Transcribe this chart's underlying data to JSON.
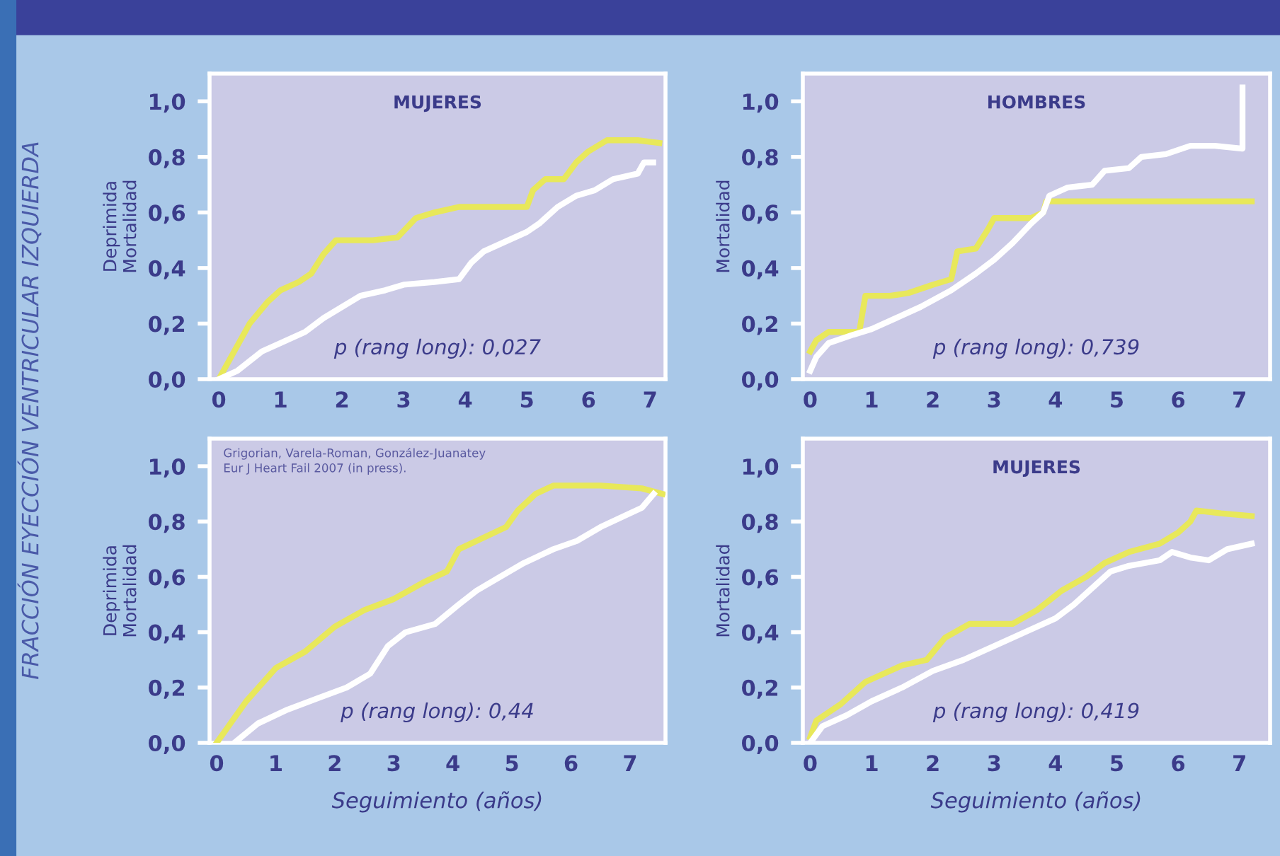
{
  "chart_data": [
    {
      "type": "line",
      "title": "MUJERES",
      "ylabel": "Deprimida\nMortalidad",
      "annotations": [
        "p (rang long): 0,027",
        "FRACCIÓN EYECCIÓN VENTRICULAR IZQUIERDA"
      ],
      "xlim": [
        -0.15,
        7.25
      ],
      "xticks": [
        0,
        1,
        2,
        3,
        4,
        5,
        6,
        7
      ],
      "ylim": [
        0,
        1.1
      ],
      "yticks": [
        {
          "value": 0,
          "label": "0,0"
        },
        {
          "value": 0.2,
          "label": "0,2"
        },
        {
          "value": 0.4,
          "label": "0,4"
        },
        {
          "value": 0.6,
          "label": "0,6"
        },
        {
          "value": 0.8,
          "label": "0,8"
        },
        {
          "value": 1.0,
          "label": "1,0"
        }
      ],
      "series": [
        {
          "color": "#e8e85a",
          "x": [
            0,
            0.2,
            0.5,
            0.8,
            1.0,
            1.3,
            1.5,
            1.7,
            1.9,
            2.5,
            2.9,
            3.2,
            3.5,
            3.9,
            4.5,
            5.0,
            5.1,
            5.3,
            5.6,
            5.8,
            6.0,
            6.3,
            6.8,
            7.15
          ],
          "values": [
            0,
            0.08,
            0.2,
            0.28,
            0.32,
            0.35,
            0.38,
            0.45,
            0.5,
            0.5,
            0.51,
            0.58,
            0.6,
            0.62,
            0.62,
            0.62,
            0.68,
            0.72,
            0.72,
            0.78,
            0.82,
            0.86,
            0.86,
            0.85
          ]
        },
        {
          "color": "#ffffff",
          "x": [
            0,
            0.3,
            0.7,
            1.0,
            1.4,
            1.7,
            2.0,
            2.3,
            2.7,
            3.0,
            3.5,
            3.9,
            4.1,
            4.3,
            4.7,
            5.0,
            5.2,
            5.5,
            5.8,
            6.1,
            6.4,
            6.8,
            6.9,
            7.05
          ],
          "values": [
            0,
            0.03,
            0.1,
            0.13,
            0.17,
            0.22,
            0.26,
            0.3,
            0.32,
            0.34,
            0.35,
            0.36,
            0.42,
            0.46,
            0.5,
            0.53,
            0.56,
            0.62,
            0.66,
            0.68,
            0.72,
            0.74,
            0.78,
            0.78
          ]
        }
      ]
    },
    {
      "type": "line",
      "title": "HOMBRES",
      "ylabel": "Mortalidad",
      "annotations": [
        "p (rang long): 0,739"
      ],
      "xlim": [
        -0.12,
        7.5
      ],
      "xticks": [
        0,
        1,
        2,
        3,
        4,
        5,
        6,
        7
      ],
      "ylim": [
        0,
        1.1
      ],
      "yticks": [
        {
          "value": 0,
          "label": "0,0"
        },
        {
          "value": 0.2,
          "label": "0,2"
        },
        {
          "value": 0.4,
          "label": "0,4"
        },
        {
          "value": 0.6,
          "label": "0,6"
        },
        {
          "value": 0.8,
          "label": "0,8"
        },
        {
          "value": 1.0,
          "label": "1,0"
        }
      ],
      "series": [
        {
          "color": "#e8e85a",
          "x": [
            0,
            0.1,
            0.3,
            0.8,
            0.9,
            1.3,
            1.6,
            2.0,
            2.3,
            2.4,
            2.7,
            2.9,
            3.0,
            3.6,
            3.8,
            3.85,
            5,
            6,
            7.2
          ],
          "values": [
            0.1,
            0.14,
            0.17,
            0.17,
            0.3,
            0.3,
            0.31,
            0.34,
            0.36,
            0.46,
            0.47,
            0.54,
            0.58,
            0.58,
            0.6,
            0.64,
            0.64,
            0.64,
            0.64
          ]
        },
        {
          "color": "#ffffff",
          "x": [
            0,
            0.1,
            0.3,
            0.7,
            1,
            1.4,
            1.8,
            2.3,
            2.7,
            3.0,
            3.3,
            3.6,
            3.8,
            3.9,
            4.2,
            4.6,
            4.8,
            5.2,
            5.4,
            5.8,
            6.2,
            6.6,
            7.05,
            7.05
          ],
          "values": [
            0.03,
            0.08,
            0.13,
            0.16,
            0.18,
            0.22,
            0.26,
            0.32,
            0.38,
            0.43,
            0.49,
            0.56,
            0.6,
            0.66,
            0.69,
            0.7,
            0.75,
            0.76,
            0.8,
            0.81,
            0.84,
            0.84,
            0.83,
            1.05
          ]
        }
      ]
    },
    {
      "type": "line",
      "xlabel": "Seguimiento (años)",
      "ylabel": "Deprimida\nMortalidad",
      "annotations": [
        "p (rang long): 0,44",
        "Grigorian, Varela-Roman, González-Juanatey\nEur J Heart Fail 2007 (in press)."
      ],
      "xlim": [
        -0.12,
        7.6
      ],
      "xticks": [
        0,
        1,
        2,
        3,
        4,
        5,
        6,
        7
      ],
      "ylim": [
        0,
        1.1
      ],
      "yticks": [
        {
          "value": 0,
          "label": "0,0"
        },
        {
          "value": 0.2,
          "label": "0,2"
        },
        {
          "value": 0.4,
          "label": "0,4"
        },
        {
          "value": 0.6,
          "label": "0,6"
        },
        {
          "value": 0.8,
          "label": "0,8"
        },
        {
          "value": 1.0,
          "label": "1,0"
        }
      ],
      "series": [
        {
          "color": "#e8e85a",
          "x": [
            0,
            0.2,
            0.5,
            1.0,
            1.5,
            2,
            2.5,
            3.0,
            3.5,
            3.9,
            4.1,
            4.5,
            4.9,
            5.1,
            5.4,
            5.7,
            6.5,
            7.2,
            7.55
          ],
          "values": [
            0,
            0.06,
            0.15,
            0.27,
            0.33,
            0.42,
            0.48,
            0.52,
            0.58,
            0.62,
            0.7,
            0.74,
            0.78,
            0.84,
            0.9,
            0.93,
            0.93,
            0.92,
            0.9
          ]
        },
        {
          "color": "#ffffff",
          "x": [
            0.3,
            0.7,
            1.2,
            1.7,
            2.2,
            2.6,
            2.9,
            3.2,
            3.7,
            4.1,
            4.4,
            4.8,
            5.2,
            5.7,
            6.1,
            6.5,
            7.0,
            7.2,
            7.4
          ],
          "values": [
            0,
            0.07,
            0.12,
            0.16,
            0.2,
            0.25,
            0.35,
            0.4,
            0.43,
            0.5,
            0.55,
            0.6,
            0.65,
            0.7,
            0.73,
            0.78,
            0.83,
            0.85,
            0.9
          ]
        }
      ]
    },
    {
      "type": "line",
      "title": "MUJERES",
      "xlabel": "Seguimiento (años)",
      "ylabel": "Mortalidad",
      "annotations": [
        "p (rang long): 0,419"
      ],
      "xlim": [
        -0.12,
        7.5
      ],
      "xticks": [
        0,
        1,
        2,
        3,
        4,
        5,
        6,
        7
      ],
      "ylim": [
        0,
        1.1
      ],
      "yticks": [
        {
          "value": 0,
          "label": "0,0"
        },
        {
          "value": 0.2,
          "label": "0,2"
        },
        {
          "value": 0.4,
          "label": "0,4"
        },
        {
          "value": 0.6,
          "label": "0,6"
        },
        {
          "value": 0.8,
          "label": "0,8"
        },
        {
          "value": 1.0,
          "label": "1,0"
        }
      ],
      "series": [
        {
          "color": "#e8e85a",
          "x": [
            0,
            0.1,
            0.5,
            0.9,
            1.2,
            1.5,
            1.9,
            2.2,
            2.6,
            3.0,
            3.3,
            3.7,
            4.1,
            4.5,
            4.8,
            5.2,
            5.7,
            6.0,
            6.2,
            6.3,
            6.7,
            7.2
          ],
          "values": [
            0.02,
            0.08,
            0.14,
            0.22,
            0.25,
            0.28,
            0.3,
            0.38,
            0.43,
            0.43,
            0.43,
            0.48,
            0.55,
            0.6,
            0.65,
            0.69,
            0.72,
            0.76,
            0.8,
            0.84,
            0.83,
            0.82
          ]
        },
        {
          "color": "#ffffff",
          "x": [
            0,
            0.2,
            0.6,
            1.0,
            1.5,
            2.0,
            2.5,
            3.0,
            3.6,
            4.0,
            4.3,
            4.6,
            4.9,
            5.2,
            5.7,
            5.9,
            6.2,
            6.5,
            6.8,
            7.2
          ],
          "values": [
            0,
            0.06,
            0.1,
            0.15,
            0.2,
            0.26,
            0.3,
            0.35,
            0.41,
            0.45,
            0.5,
            0.56,
            0.62,
            0.64,
            0.66,
            0.69,
            0.67,
            0.66,
            0.7,
            0.72
          ]
        }
      ]
    }
  ]
}
